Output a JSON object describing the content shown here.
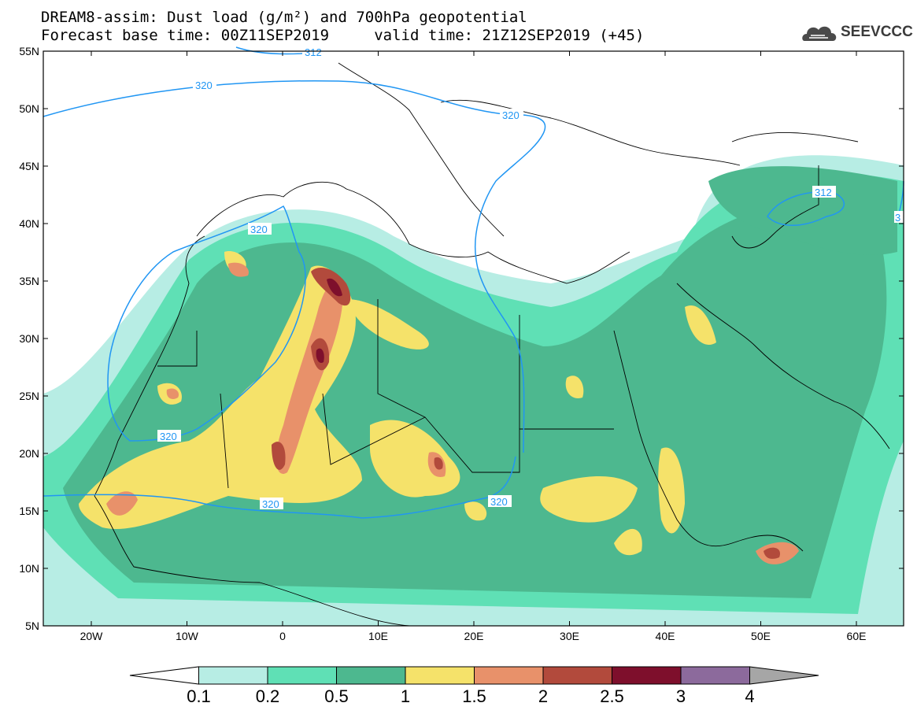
{
  "header": {
    "title_line1": "DREAM8-assim: Dust load (g/m²) and 700hPa geopotential",
    "title_line2": "Forecast base time: 00Z11SEP2019     valid time: 21Z12SEP2019 (+45)",
    "logo_text": "SEEVCCC",
    "logo_icon": "cloud-logo-icon"
  },
  "map": {
    "lat_labels": [
      "55N",
      "50N",
      "45N",
      "40N",
      "35N",
      "30N",
      "25N",
      "20N",
      "15N",
      "10N",
      "5N"
    ],
    "lon_labels": [
      "20W",
      "10W",
      "0",
      "10E",
      "20E",
      "30E",
      "40E",
      "50E",
      "60E"
    ],
    "contour_labels": [
      "312",
      "320",
      "320",
      "320",
      "320",
      "320",
      "320",
      "312",
      "3"
    ]
  },
  "colorbar": {
    "labels": [
      "0.1",
      "0.2",
      "0.5",
      "1",
      "1.5",
      "2",
      "2.5",
      "3",
      "4"
    ],
    "colors": [
      "#ffffff",
      "#b7ede4",
      "#5fe0b5",
      "#4db88f",
      "#f5e26a",
      "#e8916a",
      "#b24a3c",
      "#7e0f2c",
      "#8c6a9c",
      "#a6a6a6"
    ]
  },
  "colors": {
    "contour": "#2196f3",
    "border": "#000000",
    "c1": "#b7ede4",
    "c2": "#5fe0b5",
    "c3": "#4db88f",
    "c4": "#f5e26a",
    "c5": "#e8916a",
    "c6": "#b24a3c",
    "c7": "#7e0f2c"
  }
}
